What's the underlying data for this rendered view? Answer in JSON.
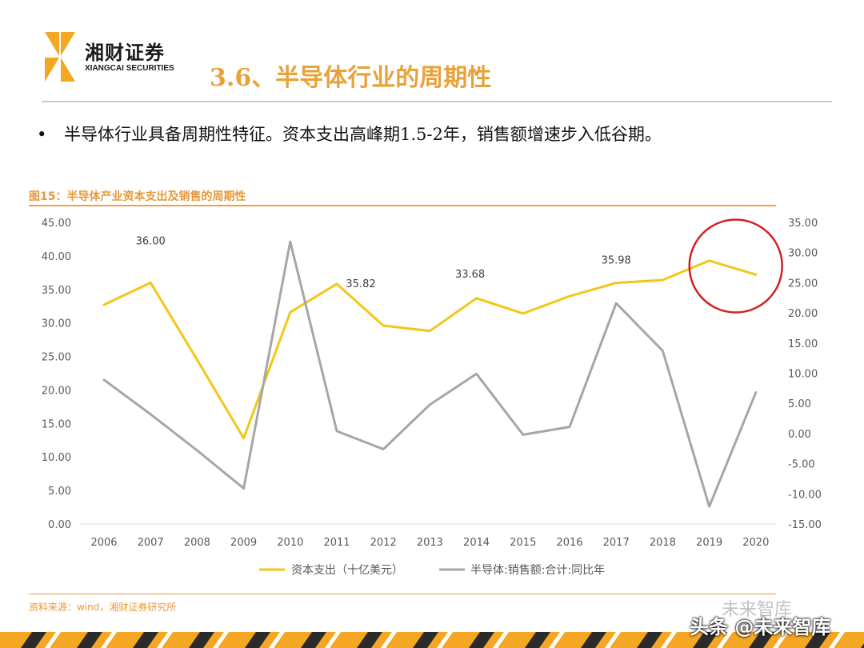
{
  "header": {
    "logo_cn": "湘财证券",
    "logo_en": "XIANGCAI SECURITIES",
    "title": "3.6、半导体行业的周期性"
  },
  "bullet": {
    "text": "半导体行业具备周期性特征。资本支出高峰期1.5-2年，销售额增速步入低谷期。"
  },
  "figure": {
    "caption": "图15：半导体产业资本支出及销售的周期性",
    "source": "资料来源：wind，湘财证券研究所"
  },
  "watermark": {
    "top": "未来智库",
    "bottom": "头条 @未来智库"
  },
  "colors": {
    "accent": "#e69a3c",
    "capex_line": "#f5c518",
    "sales_line": "#a6a6a6",
    "highlight_circle": "#d32020",
    "band_orange": "#f5a623",
    "band_dark": "#2b2b2b"
  },
  "chart_data": {
    "type": "line",
    "categories": [
      "2006",
      "2007",
      "2008",
      "2009",
      "2010",
      "2011",
      "2012",
      "2013",
      "2014",
      "2015",
      "2016",
      "2017",
      "2018",
      "2019",
      "2020"
    ],
    "y_left": {
      "ticks": [
        "0.00",
        "5.00",
        "10.00",
        "15.00",
        "20.00",
        "25.00",
        "30.00",
        "35.00",
        "40.00",
        "45.00"
      ],
      "range": [
        0,
        45
      ]
    },
    "y_right": {
      "ticks": [
        "-15.00",
        "-10.00",
        "-5.00",
        "0.00",
        "5.00",
        "10.00",
        "15.00",
        "20.00",
        "25.00",
        "30.00",
        "35.00"
      ],
      "range": [
        -15,
        35
      ]
    },
    "series": [
      {
        "name": "资本支出（十亿美元）",
        "axis": "left",
        "color": "#f5c518",
        "values": [
          32.7,
          36.0,
          24.5,
          12.8,
          31.6,
          35.82,
          29.6,
          28.8,
          33.68,
          31.4,
          34.0,
          35.98,
          36.4,
          39.3,
          37.2
        ]
      },
      {
        "name": "半导体:销售额:合计:同比年",
        "axis": "right",
        "color": "#a6a6a6",
        "values": [
          8.9,
          3.2,
          -2.8,
          -9.1,
          31.8,
          0.4,
          -2.6,
          4.8,
          9.9,
          -0.2,
          1.1,
          21.6,
          13.7,
          -12.1,
          6.8
        ]
      }
    ],
    "data_labels": [
      {
        "series": 0,
        "index": 1,
        "text": "36.00"
      },
      {
        "series": 0,
        "index": 5,
        "text": "35.82"
      },
      {
        "series": 0,
        "index": 8,
        "text": "33.68"
      },
      {
        "series": 0,
        "index": 11,
        "text": "35.98"
      }
    ],
    "highlight": {
      "from_index": 13,
      "to_index": 14
    },
    "grid": false,
    "legend_position": "bottom"
  }
}
